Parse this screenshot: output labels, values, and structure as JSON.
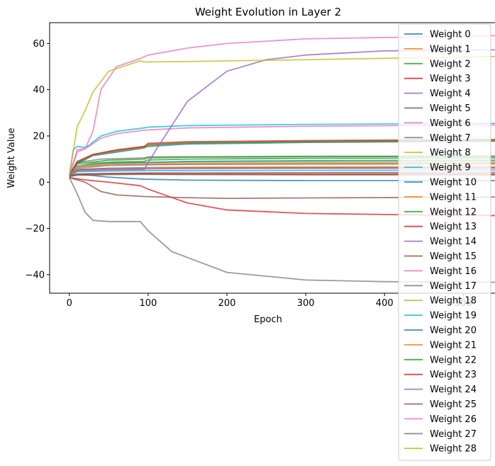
{
  "chart_data": {
    "type": "line",
    "title": "Weight Evolution in Layer 2",
    "xlabel": "Epoch",
    "ylabel": "Weight Value",
    "xlim": [
      -25,
      560
    ],
    "ylim": [
      -48,
      69
    ],
    "xticks": [
      0,
      100,
      200,
      300,
      400,
      500
    ],
    "yticks": [
      -40,
      -20,
      0,
      20,
      40,
      60
    ],
    "grid": false,
    "legend_position": "top-right",
    "colors": [
      "#1f77b4",
      "#ff7f0e",
      "#2ca02c",
      "#d62728",
      "#9467bd",
      "#8c564b",
      "#e377c2",
      "#7f7f7f",
      "#bcbd22",
      "#17becf"
    ],
    "series": [
      {
        "name": "Weight 0",
        "points": [
          [
            0,
            3
          ],
          [
            10,
            3.5
          ],
          [
            20,
            3.2
          ],
          [
            50,
            2.2
          ],
          [
            95,
            1.3
          ],
          [
            150,
            0.9
          ],
          [
            300,
            0.7
          ],
          [
            560,
            0.7
          ]
        ]
      },
      {
        "name": "Weight 1",
        "points": [
          [
            0,
            3
          ],
          [
            15,
            5.5
          ],
          [
            50,
            6
          ],
          [
            95,
            6.3
          ],
          [
            150,
            6.5
          ],
          [
            300,
            6.6
          ],
          [
            560,
            6.7
          ]
        ]
      },
      {
        "name": "Weight 2",
        "points": [
          [
            0,
            3
          ],
          [
            10,
            7
          ],
          [
            30,
            8.2
          ],
          [
            60,
            8.8
          ],
          [
            95,
            9
          ],
          [
            100,
            9.6
          ],
          [
            150,
            10
          ],
          [
            300,
            10.3
          ],
          [
            560,
            10.5
          ]
        ]
      },
      {
        "name": "Weight 3",
        "points": [
          [
            0,
            2.5
          ],
          [
            10,
            3.5
          ],
          [
            50,
            3.6
          ],
          [
            95,
            3.7
          ],
          [
            150,
            3.6
          ],
          [
            300,
            3.5
          ],
          [
            560,
            3.5
          ]
        ]
      },
      {
        "name": "Weight 4",
        "points": [
          [
            0,
            3
          ],
          [
            10,
            5.5
          ],
          [
            50,
            6
          ],
          [
            95,
            6
          ],
          [
            150,
            6
          ],
          [
            300,
            6.2
          ],
          [
            560,
            6.3
          ]
        ]
      },
      {
        "name": "Weight 5",
        "points": [
          [
            0,
            2.5
          ],
          [
            10,
            3.5
          ],
          [
            50,
            3.8
          ],
          [
            95,
            4
          ],
          [
            150,
            4
          ],
          [
            300,
            4.1
          ],
          [
            560,
            4.2
          ]
        ]
      },
      {
        "name": "Weight 6",
        "points": [
          [
            0,
            3
          ],
          [
            10,
            13
          ],
          [
            20,
            14.5
          ],
          [
            25,
            15.5
          ],
          [
            40,
            19
          ],
          [
            60,
            21
          ],
          [
            95,
            22.5
          ],
          [
            150,
            23.5
          ],
          [
            300,
            24.2
          ],
          [
            560,
            24.8
          ]
        ]
      },
      {
        "name": "Weight 7",
        "points": [
          [
            0,
            3
          ],
          [
            10,
            8.5
          ],
          [
            40,
            10
          ],
          [
            95,
            10.5
          ],
          [
            100,
            11
          ],
          [
            150,
            11
          ],
          [
            300,
            11.2
          ],
          [
            560,
            11.3
          ]
        ]
      },
      {
        "name": "Weight 8",
        "points": [
          [
            0,
            3
          ],
          [
            10,
            7
          ],
          [
            40,
            8
          ],
          [
            95,
            8.4
          ],
          [
            150,
            8.6
          ],
          [
            300,
            8.7
          ],
          [
            560,
            8.8
          ]
        ]
      },
      {
        "name": "Weight 9",
        "points": [
          [
            0,
            3
          ],
          [
            5,
            14
          ],
          [
            10,
            15.5
          ],
          [
            20,
            15
          ],
          [
            25,
            16
          ],
          [
            40,
            20
          ],
          [
            60,
            22
          ],
          [
            95,
            23.5
          ],
          [
            100,
            23.8
          ],
          [
            150,
            24.5
          ],
          [
            300,
            25
          ],
          [
            560,
            25.5
          ]
        ]
      },
      {
        "name": "Weight 10",
        "points": [
          [
            0,
            3
          ],
          [
            10,
            7
          ],
          [
            50,
            8.2
          ],
          [
            95,
            8.5
          ],
          [
            150,
            9
          ],
          [
            300,
            9.3
          ],
          [
            560,
            9.5
          ]
        ]
      },
      {
        "name": "Weight 11",
        "points": [
          [
            0,
            3
          ],
          [
            10,
            6
          ],
          [
            50,
            7.2
          ],
          [
            95,
            7.5
          ],
          [
            150,
            7.7
          ],
          [
            300,
            7.8
          ],
          [
            560,
            7.9
          ]
        ]
      },
      {
        "name": "Weight 12",
        "points": [
          [
            0,
            3
          ],
          [
            10,
            8
          ],
          [
            50,
            9.5
          ],
          [
            95,
            10
          ],
          [
            100,
            10.5
          ],
          [
            150,
            10.8
          ],
          [
            300,
            11
          ],
          [
            560,
            11.2
          ]
        ]
      },
      {
        "name": "Weight 13",
        "points": [
          [
            0,
            2
          ],
          [
            20,
            1
          ],
          [
            50,
            0
          ],
          [
            90,
            -1.5
          ],
          [
            100,
            -3
          ],
          [
            150,
            -9
          ],
          [
            200,
            -12
          ],
          [
            300,
            -13.5
          ],
          [
            450,
            -14.2
          ],
          [
            560,
            -14.5
          ]
        ]
      },
      {
        "name": "Weight 14",
        "points": [
          [
            0,
            3
          ],
          [
            10,
            6.5
          ],
          [
            50,
            7.5
          ],
          [
            95,
            7.6
          ],
          [
            150,
            7.8
          ],
          [
            300,
            8
          ],
          [
            560,
            8.1
          ]
        ]
      },
      {
        "name": "Weight 15",
        "points": [
          [
            0,
            2.5
          ],
          [
            10,
            3
          ],
          [
            50,
            3.3
          ],
          [
            95,
            3.4
          ],
          [
            150,
            3.3
          ],
          [
            300,
            3.2
          ],
          [
            560,
            3.2
          ]
        ]
      },
      {
        "name": "Weight 16",
        "points": [
          [
            0,
            3
          ],
          [
            10,
            5
          ],
          [
            50,
            5.5
          ],
          [
            95,
            5.7
          ],
          [
            150,
            5.8
          ],
          [
            300,
            5.9
          ],
          [
            560,
            6
          ]
        ]
      },
      {
        "name": "Weight 17",
        "points": [
          [
            0,
            3
          ],
          [
            10,
            5.5
          ],
          [
            50,
            6
          ],
          [
            95,
            6.1
          ],
          [
            150,
            6.2
          ],
          [
            300,
            6.3
          ],
          [
            560,
            6.3
          ]
        ]
      },
      {
        "name": "Weight 18",
        "points": [
          [
            0,
            3
          ],
          [
            10,
            7
          ],
          [
            50,
            7.8
          ],
          [
            95,
            8
          ],
          [
            150,
            8.2
          ],
          [
            300,
            8.3
          ],
          [
            560,
            8.4
          ]
        ]
      },
      {
        "name": "Weight 19",
        "points": [
          [
            0,
            3
          ],
          [
            10,
            4.5
          ],
          [
            50,
            4.8
          ],
          [
            95,
            5
          ],
          [
            150,
            5
          ],
          [
            300,
            5.1
          ],
          [
            560,
            5.2
          ]
        ]
      },
      {
        "name": "Weight 20",
        "points": [
          [
            0,
            3
          ],
          [
            10,
            8
          ],
          [
            30,
            11.5
          ],
          [
            60,
            13
          ],
          [
            95,
            14.8
          ],
          [
            100,
            15.5
          ],
          [
            150,
            16.5
          ],
          [
            300,
            17.2
          ],
          [
            560,
            17.8
          ]
        ]
      },
      {
        "name": "Weight 21",
        "points": [
          [
            0,
            3
          ],
          [
            10,
            8.5
          ],
          [
            30,
            11.8
          ],
          [
            60,
            13.5
          ],
          [
            95,
            15
          ],
          [
            100,
            16
          ],
          [
            150,
            17
          ],
          [
            300,
            17.6
          ],
          [
            560,
            18.2
          ]
        ]
      },
      {
        "name": "Weight 22",
        "points": [
          [
            0,
            3
          ],
          [
            10,
            8.5
          ],
          [
            30,
            12
          ],
          [
            60,
            13.6
          ],
          [
            95,
            15.2
          ],
          [
            100,
            16.2
          ],
          [
            150,
            17
          ],
          [
            300,
            17.5
          ],
          [
            560,
            18
          ]
        ]
      },
      {
        "name": "Weight 23",
        "points": [
          [
            0,
            3
          ],
          [
            10,
            9
          ],
          [
            30,
            12
          ],
          [
            60,
            14
          ],
          [
            95,
            15.5
          ],
          [
            100,
            16.8
          ],
          [
            150,
            17.5
          ],
          [
            300,
            18
          ],
          [
            560,
            18.5
          ]
        ]
      },
      {
        "name": "Weight 24",
        "points": [
          [
            0,
            3
          ],
          [
            10,
            5
          ],
          [
            50,
            5.3
          ],
          [
            95,
            5.5
          ],
          [
            110,
            14
          ],
          [
            150,
            35
          ],
          [
            200,
            48
          ],
          [
            250,
            53
          ],
          [
            300,
            55
          ],
          [
            400,
            56.8
          ],
          [
            560,
            57.3
          ]
        ]
      },
      {
        "name": "Weight 25",
        "points": [
          [
            0,
            2
          ],
          [
            20,
            0
          ],
          [
            40,
            -4
          ],
          [
            60,
            -5.5
          ],
          [
            95,
            -6.2
          ],
          [
            150,
            -6.7
          ],
          [
            200,
            -7
          ],
          [
            300,
            -6.8
          ],
          [
            560,
            -6.4
          ]
        ]
      },
      {
        "name": "Weight 26",
        "points": [
          [
            0,
            3
          ],
          [
            10,
            14
          ],
          [
            20,
            14.5
          ],
          [
            30,
            22
          ],
          [
            40,
            40
          ],
          [
            60,
            50
          ],
          [
            90,
            53.5
          ],
          [
            100,
            55
          ],
          [
            150,
            58
          ],
          [
            200,
            60
          ],
          [
            300,
            62
          ],
          [
            560,
            63.5
          ]
        ]
      },
      {
        "name": "Weight 27",
        "points": [
          [
            0,
            2
          ],
          [
            10,
            -5
          ],
          [
            20,
            -13
          ],
          [
            30,
            -16.5
          ],
          [
            50,
            -17
          ],
          [
            90,
            -17
          ],
          [
            100,
            -21
          ],
          [
            130,
            -30
          ],
          [
            200,
            -39
          ],
          [
            300,
            -42.3
          ],
          [
            400,
            -43
          ],
          [
            560,
            -43.3
          ]
        ]
      },
      {
        "name": "Weight 28",
        "points": [
          [
            0,
            3
          ],
          [
            10,
            24
          ],
          [
            20,
            31
          ],
          [
            30,
            39
          ],
          [
            50,
            48
          ],
          [
            90,
            52.5
          ],
          [
            95,
            52
          ],
          [
            150,
            52.2
          ],
          [
            300,
            53
          ],
          [
            560,
            54.5
          ]
        ]
      }
    ]
  }
}
